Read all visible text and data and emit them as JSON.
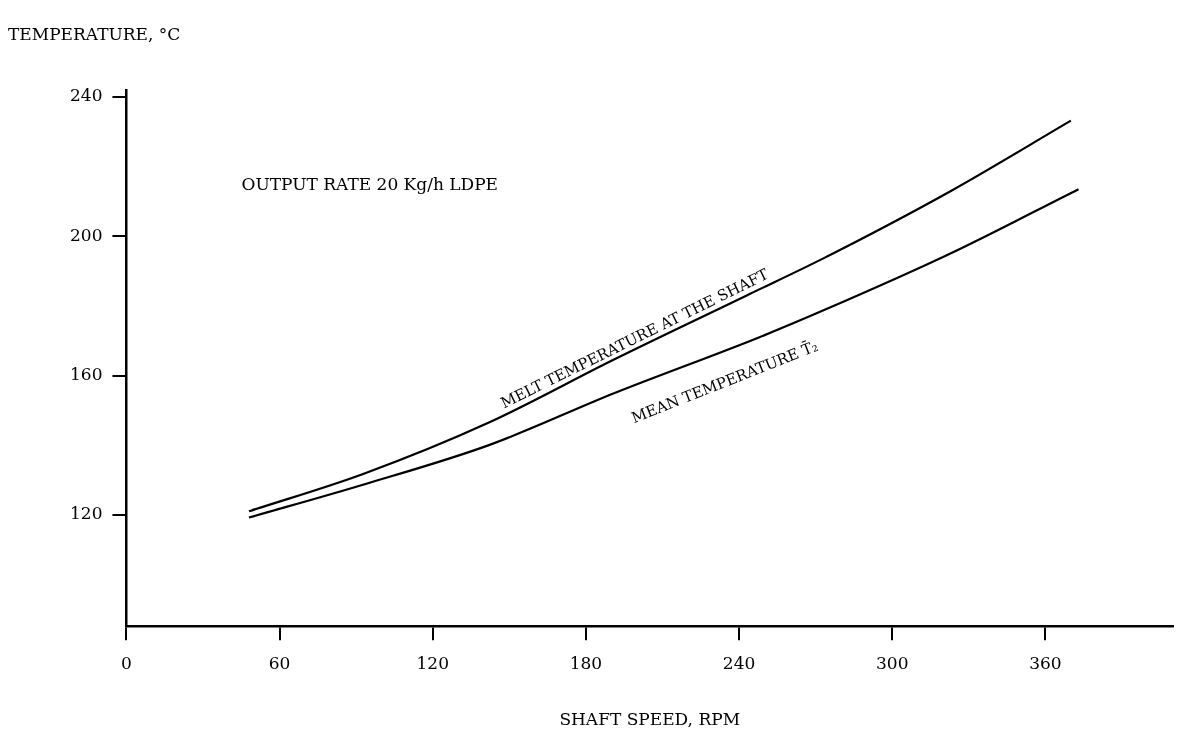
{
  "chart_data": {
    "type": "line",
    "xlabel": "SHAFT SPEED, RPM",
    "ylabel": "TEMPERATURE, °C",
    "annotations": [
      "OUTPUT RATE 20 Kg/h LDPE"
    ],
    "xlim": [
      0,
      410
    ],
    "xticks": [
      0,
      60,
      120,
      180,
      240,
      300,
      360
    ],
    "ylim": [
      88,
      242
    ],
    "yticks": [
      120,
      160,
      200,
      240
    ],
    "grid": false,
    "legend": false,
    "marker": "none",
    "line_style": "solid",
    "series": [
      {
        "name": "MELT TEMPERATURE AT THE SHAFT",
        "color": "#000000",
        "x": [
          48,
          93,
          142,
          191,
          243,
          274,
          323,
          370
        ],
        "values": [
          121,
          131.8,
          146.5,
          164.6,
          183,
          194,
          213,
          233.2
        ]
      },
      {
        "name": "MEAN TEMPERATURE T̄₂",
        "color": "#000000",
        "x": [
          48,
          93,
          142,
          191,
          248,
          274,
          323,
          373
        ],
        "values": [
          119.2,
          128.7,
          140,
          154.9,
          171,
          179,
          195.1,
          213.5
        ]
      }
    ]
  }
}
